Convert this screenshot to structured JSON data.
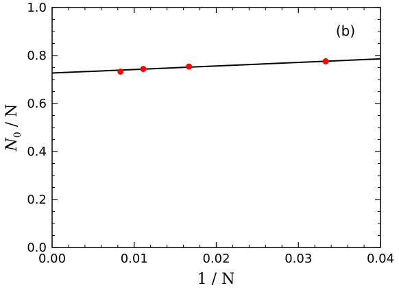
{
  "chart_data": {
    "type": "scatter",
    "panel_label": "(b)",
    "xlabel": "1 / N",
    "ylabel_main": "N",
    "ylabel_sub": "0",
    "ylabel_rest": " / N",
    "xlim": [
      0.0,
      0.04
    ],
    "ylim": [
      0.0,
      1.0
    ],
    "x_ticks": [
      {
        "value": 0.0,
        "label": "0.00"
      },
      {
        "value": 0.01,
        "label": "0.01"
      },
      {
        "value": 0.02,
        "label": "0.02"
      },
      {
        "value": 0.03,
        "label": "0.03"
      },
      {
        "value": 0.04,
        "label": "0.04"
      }
    ],
    "y_ticks": [
      {
        "value": 0.0,
        "label": "0.0"
      },
      {
        "value": 0.2,
        "label": "0.2"
      },
      {
        "value": 0.4,
        "label": "0.4"
      },
      {
        "value": 0.6,
        "label": "0.6"
      },
      {
        "value": 0.8,
        "label": "0.8"
      },
      {
        "value": 1.0,
        "label": "1.0"
      }
    ],
    "grid": false,
    "series": [
      {
        "kind": "points",
        "color": "#ff0000",
        "points": [
          {
            "x": 0.00833,
            "y": 0.733
          },
          {
            "x": 0.01111,
            "y": 0.744
          },
          {
            "x": 0.01667,
            "y": 0.754
          },
          {
            "x": 0.03333,
            "y": 0.776
          }
        ]
      },
      {
        "kind": "fit-line",
        "color": "#000000",
        "points": [
          {
            "x": 0.0,
            "y": 0.727
          },
          {
            "x": 0.04,
            "y": 0.786
          }
        ]
      }
    ]
  }
}
